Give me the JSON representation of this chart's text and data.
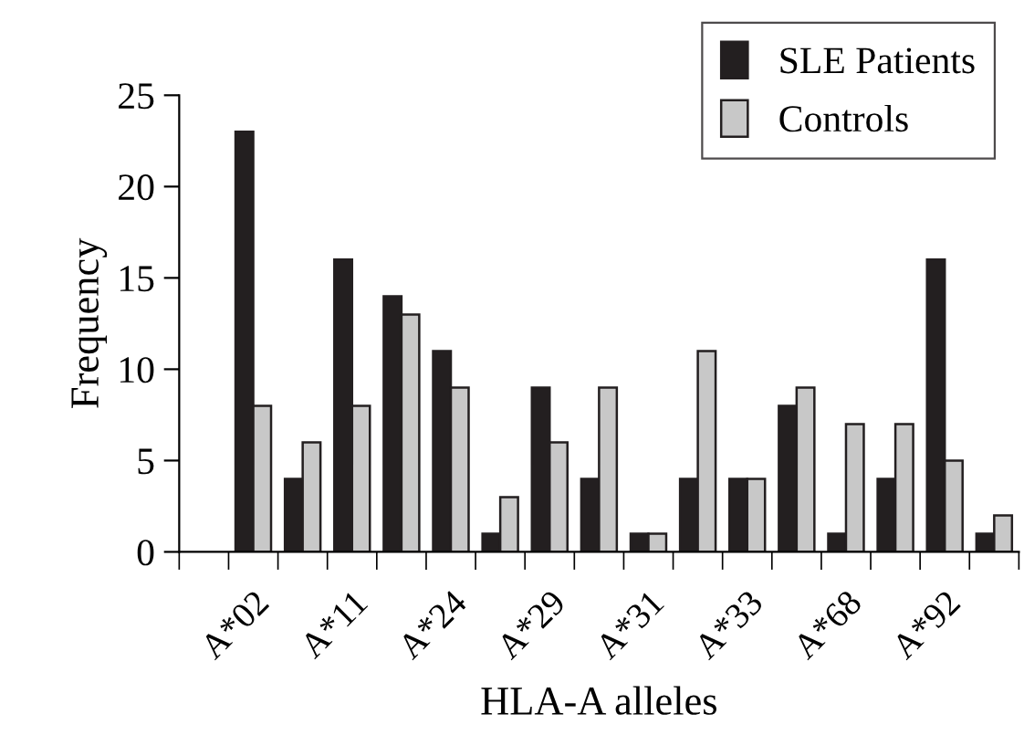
{
  "chart_data": {
    "type": "bar",
    "xlabel": "HLA-A alleles",
    "ylabel": "Frequency",
    "categories": [
      null,
      "A*02",
      null,
      "A*11",
      null,
      "A*24",
      null,
      "A*29",
      null,
      "A*31",
      null,
      "A*33",
      null,
      "A*68",
      null,
      "A*92",
      null
    ],
    "series": [
      {
        "name": "SLE Patients",
        "color": "#231f20",
        "values": [
          null,
          23,
          4,
          16,
          14,
          11,
          1,
          9,
          4,
          1,
          4,
          4,
          8,
          1,
          4,
          16,
          1
        ]
      },
      {
        "name": "Controls",
        "color": "#c8c8c8",
        "values": [
          null,
          8,
          6,
          8,
          13,
          9,
          3,
          6,
          9,
          1,
          11,
          4,
          9,
          7,
          7,
          5,
          2
        ]
      }
    ],
    "ylim": [
      0,
      25
    ],
    "yticks": [
      0,
      5,
      10,
      15,
      20,
      25
    ],
    "grid": false,
    "legend": "top right"
  }
}
